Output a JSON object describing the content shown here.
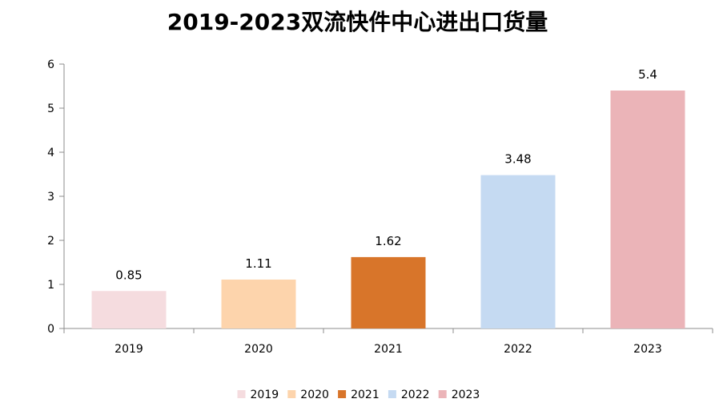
{
  "chart_data": {
    "type": "bar",
    "title": "2019-2023双流快件中心进出口货量",
    "categories": [
      "2019",
      "2020",
      "2021",
      "2022",
      "2023"
    ],
    "values": [
      0.85,
      1.11,
      1.62,
      3.48,
      5.4
    ],
    "data_labels": [
      "0.85",
      "1.11",
      "1.62",
      "3.48",
      "5.4"
    ],
    "colors": [
      "#f5dcdf",
      "#fdd4ac",
      "#d8752a",
      "#c5daf2",
      "#ebb4b8"
    ],
    "ylim": [
      0,
      6
    ],
    "yticks": [
      "0",
      "1",
      "2",
      "3",
      "4",
      "5",
      "6"
    ],
    "legend": {
      "placement": "bottom",
      "entries": [
        "2019",
        "2020",
        "2021",
        "2022",
        "2023"
      ]
    },
    "grid": false
  }
}
